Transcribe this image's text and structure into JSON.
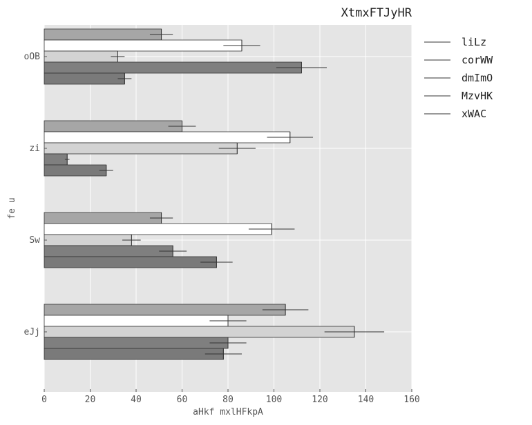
{
  "chart_data": {
    "type": "bar",
    "orientation": "horizontal",
    "title": "XtmxFTJyHR",
    "xlabel": "aHkf mxlHFkpA",
    "ylabel": "fe u",
    "xlim": [
      0,
      160
    ],
    "xticks": [
      0,
      20,
      40,
      60,
      80,
      100,
      120,
      140,
      160
    ],
    "grid": true,
    "legend_position": "outside-right",
    "categories": [
      "oOB",
      "zi",
      "Sw",
      "eJj"
    ],
    "series": [
      {
        "name": "liLz",
        "color": "#a6a6a6",
        "values": [
          51,
          60,
          51,
          105
        ],
        "errors": [
          5,
          6,
          5,
          10
        ]
      },
      {
        "name": "corWW",
        "color": "#ffffff",
        "values": [
          86,
          107,
          99,
          80
        ],
        "errors": [
          8,
          10,
          10,
          8
        ]
      },
      {
        "name": "dmImO",
        "color": "#d3d3d3",
        "values": [
          32,
          84,
          38,
          135
        ],
        "errors": [
          3,
          8,
          4,
          13
        ]
      },
      {
        "name": "MzvHK",
        "color": "#7f7f7f",
        "values": [
          112,
          10,
          56,
          80
        ],
        "errors": [
          11,
          1,
          6,
          8
        ]
      },
      {
        "name": "xWAC",
        "color": "#7a7a7a",
        "values": [
          35,
          27,
          75,
          78
        ],
        "errors": [
          3,
          3,
          7,
          8
        ]
      }
    ]
  },
  "colors": {
    "plot_background": "#e5e5e5",
    "grid": "#ffffff",
    "text": "#555555",
    "bar_edge": "#333333"
  }
}
